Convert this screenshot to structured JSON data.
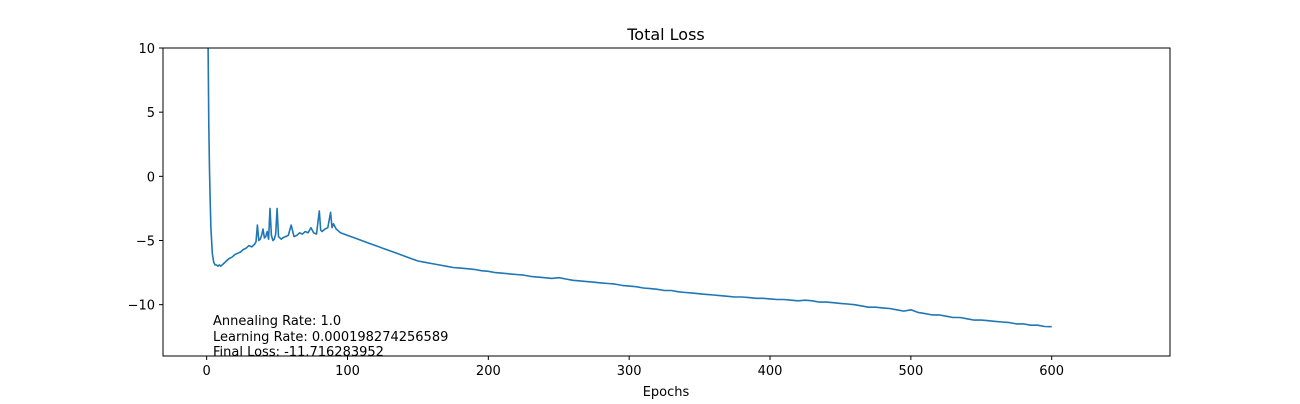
{
  "chart_data": {
    "type": "line",
    "title": "Total Loss",
    "xlabel": "Epochs",
    "ylabel": "",
    "xlim": [
      -31,
      684
    ],
    "ylim": [
      -14,
      10
    ],
    "xticks": [
      0,
      100,
      200,
      300,
      400,
      500,
      600
    ],
    "yticks": [
      10,
      5,
      0,
      -5,
      -10
    ],
    "xtick_labels": [
      "0",
      "100",
      "200",
      "300",
      "400",
      "500",
      "600"
    ],
    "ytick_labels": [
      "10",
      "5",
      "0",
      "−5",
      "−10"
    ],
    "grid": false,
    "line_color": "#1f77b4",
    "annotations": [
      "Annealing Rate: 1.0",
      "Learning Rate: 0.000198274256589",
      "Final Loss: -11.716283952"
    ],
    "series": [
      {
        "x": [
          1,
          1.5,
          2,
          2.5,
          3,
          4,
          5,
          6,
          7,
          8,
          9,
          10,
          12,
          14,
          16,
          18,
          20,
          22,
          24,
          26,
          28,
          30,
          32,
          34,
          35,
          36,
          37,
          38,
          39,
          40,
          41,
          42,
          43,
          44,
          45,
          46,
          47,
          48,
          49,
          50,
          51,
          52,
          53,
          54,
          56,
          58,
          60,
          62,
          64,
          66,
          68,
          70,
          72,
          74,
          76,
          78,
          80,
          81,
          82,
          84,
          86,
          88,
          89,
          90,
          92,
          95,
          100,
          105,
          110,
          115,
          120,
          125,
          130,
          135,
          140,
          145,
          150,
          155,
          160,
          165,
          170,
          175,
          180,
          185,
          190,
          195,
          200,
          205,
          210,
          215,
          220,
          225,
          230,
          235,
          240,
          245,
          250,
          255,
          260,
          265,
          270,
          275,
          280,
          285,
          290,
          295,
          300,
          305,
          310,
          315,
          320,
          325,
          330,
          335,
          340,
          345,
          350,
          355,
          360,
          365,
          370,
          375,
          380,
          385,
          390,
          395,
          400,
          405,
          410,
          415,
          420,
          425,
          430,
          435,
          440,
          445,
          450,
          455,
          460,
          465,
          470,
          475,
          480,
          485,
          490,
          495,
          500,
          505,
          510,
          515,
          520,
          525,
          530,
          535,
          540,
          545,
          550,
          555,
          560,
          565,
          570,
          575,
          580,
          585,
          590,
          595,
          600
        ],
        "values": [
          10.0,
          4.0,
          0.5,
          -2.0,
          -4.0,
          -6.0,
          -6.7,
          -6.9,
          -6.9,
          -7.0,
          -6.9,
          -7.0,
          -6.8,
          -6.6,
          -6.4,
          -6.3,
          -6.1,
          -6.0,
          -5.9,
          -5.7,
          -5.6,
          -5.4,
          -5.5,
          -5.3,
          -5.1,
          -3.8,
          -5.0,
          -4.9,
          -4.6,
          -4.1,
          -4.8,
          -4.7,
          -4.3,
          -4.9,
          -2.5,
          -4.6,
          -5.0,
          -4.9,
          -4.5,
          -2.5,
          -4.7,
          -4.8,
          -4.9,
          -4.8,
          -4.7,
          -4.6,
          -3.8,
          -4.7,
          -4.6,
          -4.4,
          -4.5,
          -4.3,
          -4.4,
          -4.0,
          -4.4,
          -4.5,
          -2.7,
          -4.2,
          -4.3,
          -4.1,
          -4.0,
          -2.8,
          -4.0,
          -3.7,
          -4.1,
          -4.4,
          -4.6,
          -4.8,
          -5.0,
          -5.2,
          -5.4,
          -5.6,
          -5.8,
          -6.0,
          -6.2,
          -6.4,
          -6.6,
          -6.7,
          -6.8,
          -6.9,
          -7.0,
          -7.1,
          -7.15,
          -7.2,
          -7.25,
          -7.35,
          -7.4,
          -7.5,
          -7.55,
          -7.6,
          -7.65,
          -7.7,
          -7.8,
          -7.85,
          -7.9,
          -7.95,
          -7.9,
          -8.0,
          -8.1,
          -8.15,
          -8.2,
          -8.25,
          -8.3,
          -8.35,
          -8.4,
          -8.5,
          -8.55,
          -8.6,
          -8.7,
          -8.75,
          -8.8,
          -8.9,
          -8.9,
          -9.0,
          -9.05,
          -9.1,
          -9.15,
          -9.2,
          -9.25,
          -9.3,
          -9.35,
          -9.4,
          -9.4,
          -9.45,
          -9.5,
          -9.5,
          -9.55,
          -9.6,
          -9.6,
          -9.65,
          -9.7,
          -9.65,
          -9.7,
          -9.8,
          -9.8,
          -9.85,
          -9.9,
          -9.95,
          -10.0,
          -10.1,
          -10.2,
          -10.2,
          -10.25,
          -10.3,
          -10.4,
          -10.5,
          -10.4,
          -10.6,
          -10.7,
          -10.8,
          -10.8,
          -10.9,
          -11.0,
          -11.0,
          -11.1,
          -11.2,
          -11.2,
          -11.25,
          -11.3,
          -11.35,
          -11.4,
          -11.5,
          -11.5,
          -11.6,
          -11.6,
          -11.7,
          -11.72
        ]
      }
    ]
  }
}
